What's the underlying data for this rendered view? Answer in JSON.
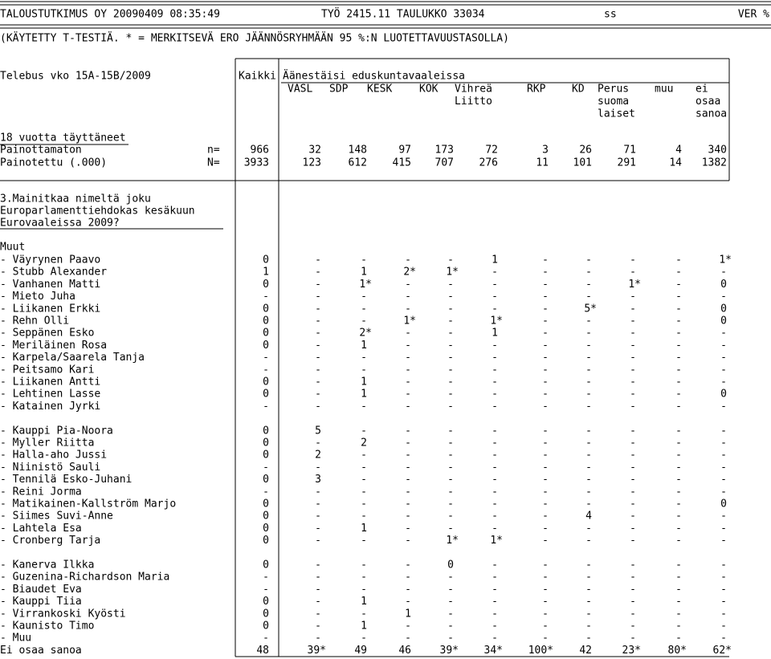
{
  "header": {
    "line1": [
      "TALOUSTUTKIMUS OY 20090409 08:35:49",
      "TYÖ 2415.11 TAULUKKO 33034",
      "ss",
      "VER %"
    ],
    "note": "(KÄYTETTY T-TESTIÄ. * = MERKITSEVÄ ERO JÄÄNNÖSRYHMÄÄN 95 %:N LUOTETTAVUUSTASOLLA)"
  },
  "table": {
    "stub_title": "Telebus vko 15A-15B/2009",
    "total_label": "Kaikki",
    "group_label": "Äänestäisi eduskuntavaaleissa",
    "columns": [
      [
        "VASL"
      ],
      [
        "SDP"
      ],
      [
        "KESK"
      ],
      [
        "KOK"
      ],
      [
        "Vihreä",
        "Liitto"
      ],
      [
        "RKP"
      ],
      [
        "KD"
      ],
      [
        "Perus",
        "suoma",
        "laiset"
      ],
      [
        "muu"
      ],
      [
        "ei",
        "osaa",
        "sanoa"
      ]
    ],
    "base_title": "18 vuotta täyttäneet",
    "bases": [
      {
        "label": "Painottamaton",
        "mark": "n=",
        "cells": [
          "966",
          "32",
          "148",
          "97",
          "173",
          "72",
          "3",
          "26",
          "71",
          "4",
          "340"
        ]
      },
      {
        "label": "Painotettu (.000)",
        "mark": "N=",
        "cells": [
          "3933",
          "123",
          "612",
          "415",
          "707",
          "276",
          "11",
          "101",
          "291",
          "14",
          "1382"
        ]
      }
    ],
    "question": [
      "3.Mainitkaa nimeltä joku",
      "Europarlamenttiehdokas kesäkuun",
      "Eurovaaleissa 2009?"
    ],
    "section": "Muut",
    "groups": [
      [
        {
          "label": "- Väyrynen Paavo",
          "cells": [
            "0",
            "-",
            "-",
            "-",
            "-",
            "1",
            "-",
            "-",
            "-",
            "-",
            "1*"
          ]
        },
        {
          "label": "- Stubb Alexander",
          "cells": [
            "1",
            "-",
            "1",
            "2*",
            "1*",
            "-",
            "-",
            "-",
            "-",
            "-",
            "-"
          ]
        },
        {
          "label": "- Vanhanen Matti",
          "cells": [
            "0",
            "-",
            "1*",
            "-",
            "-",
            "-",
            "-",
            "-",
            "1*",
            "-",
            "0"
          ]
        },
        {
          "label": "- Mieto Juha",
          "cells": [
            "-",
            "-",
            "-",
            "-",
            "-",
            "-",
            "-",
            "-",
            "-",
            "-",
            "-"
          ]
        },
        {
          "label": "- Liikanen Erkki",
          "cells": [
            "0",
            "-",
            "-",
            "-",
            "-",
            "-",
            "-",
            "5*",
            "-",
            "-",
            "0"
          ]
        },
        {
          "label": "- Rehn Olli",
          "cells": [
            "0",
            "-",
            "-",
            "1*",
            "-",
            "1*",
            "-",
            "-",
            "-",
            "-",
            "0"
          ]
        },
        {
          "label": "- Seppänen Esko",
          "cells": [
            "0",
            "-",
            "2*",
            "-",
            "-",
            "1",
            "-",
            "-",
            "-",
            "-",
            "-"
          ]
        },
        {
          "label": "- Meriläinen Rosa",
          "cells": [
            "0",
            "-",
            "1",
            "-",
            "-",
            "-",
            "-",
            "-",
            "-",
            "-",
            "-"
          ]
        },
        {
          "label": "- Karpela/Saarela Tanja",
          "cells": [
            "-",
            "-",
            "-",
            "-",
            "-",
            "-",
            "-",
            "-",
            "-",
            "-",
            "-"
          ]
        },
        {
          "label": "- Peitsamo Kari",
          "cells": [
            "-",
            "-",
            "-",
            "-",
            "-",
            "-",
            "-",
            "-",
            "-",
            "-",
            "-"
          ]
        },
        {
          "label": "- Liikanen Antti",
          "cells": [
            "0",
            "-",
            "1",
            "-",
            "-",
            "-",
            "-",
            "-",
            "-",
            "-",
            "-"
          ]
        },
        {
          "label": "- Lehtinen Lasse",
          "cells": [
            "0",
            "-",
            "1",
            "-",
            "-",
            "-",
            "-",
            "-",
            "-",
            "-",
            "0"
          ]
        },
        {
          "label": "- Katainen Jyrki",
          "cells": [
            "-",
            "-",
            "-",
            "-",
            "-",
            "-",
            "-",
            "-",
            "-",
            "-",
            "-"
          ]
        }
      ],
      [
        {
          "label": "- Kauppi Pia-Noora",
          "cells": [
            "0",
            "5",
            "-",
            "-",
            "-",
            "-",
            "-",
            "-",
            "-",
            "-",
            "-"
          ]
        },
        {
          "label": "- Myller Riitta",
          "cells": [
            "0",
            "-",
            "2",
            "-",
            "-",
            "-",
            "-",
            "-",
            "-",
            "-",
            "-"
          ]
        },
        {
          "label": "- Halla-aho Jussi",
          "cells": [
            "0",
            "2",
            "-",
            "-",
            "-",
            "-",
            "-",
            "-",
            "-",
            "-",
            "-"
          ]
        },
        {
          "label": "- Niinistö Sauli",
          "cells": [
            "-",
            "-",
            "-",
            "-",
            "-",
            "-",
            "-",
            "-",
            "-",
            "-",
            "-"
          ]
        },
        {
          "label": "- Tennilä Esko-Juhani",
          "cells": [
            "0",
            "3",
            "-",
            "-",
            "-",
            "-",
            "-",
            "-",
            "-",
            "-",
            "-"
          ]
        },
        {
          "label": "- Reini Jorma",
          "cells": [
            "-",
            "-",
            "-",
            "-",
            "-",
            "-",
            "-",
            "-",
            "-",
            "-",
            "-"
          ]
        },
        {
          "label": "- Matikainen-Kallström Marjo",
          "cells": [
            "0",
            "-",
            "-",
            "-",
            "-",
            "-",
            "-",
            "-",
            "-",
            "-",
            "0"
          ]
        },
        {
          "label": "- Siimes Suvi-Anne",
          "cells": [
            "0",
            "-",
            "-",
            "-",
            "-",
            "-",
            "-",
            "4",
            "-",
            "-",
            "-"
          ]
        },
        {
          "label": "- Lahtela Esa",
          "cells": [
            "0",
            "-",
            "1",
            "-",
            "-",
            "-",
            "-",
            "-",
            "-",
            "-",
            "-"
          ]
        },
        {
          "label": "- Cronberg Tarja",
          "cells": [
            "0",
            "-",
            "-",
            "-",
            "1*",
            "1*",
            "-",
            "-",
            "-",
            "-",
            "-"
          ]
        }
      ],
      [
        {
          "label": "- Kanerva Ilkka",
          "cells": [
            "0",
            "-",
            "-",
            "-",
            "0",
            "-",
            "-",
            "-",
            "-",
            "-",
            "-"
          ]
        },
        {
          "label": "- Guzenina-Richardson Maria",
          "cells": [
            "-",
            "-",
            "-",
            "-",
            "-",
            "-",
            "-",
            "-",
            "-",
            "-",
            "-"
          ]
        },
        {
          "label": "- Biaudet Eva",
          "cells": [
            "-",
            "-",
            "-",
            "-",
            "-",
            "-",
            "-",
            "-",
            "-",
            "-",
            "-"
          ]
        },
        {
          "label": "- Kauppi Tiia",
          "cells": [
            "0",
            "-",
            "1",
            "-",
            "-",
            "-",
            "-",
            "-",
            "-",
            "-",
            "-"
          ]
        },
        {
          "label": "- Virrankoski Kyösti",
          "cells": [
            "0",
            "-",
            "-",
            "1",
            "-",
            "-",
            "-",
            "-",
            "-",
            "-",
            "-"
          ]
        },
        {
          "label": "- Kaunisto Timo",
          "cells": [
            "0",
            "-",
            "1",
            "-",
            "-",
            "-",
            "-",
            "-",
            "-",
            "-",
            "-"
          ]
        },
        {
          "label": "- Muu",
          "cells": [
            "-",
            "-",
            "-",
            "-",
            "-",
            "-",
            "-",
            "-",
            "-",
            "-",
            "-"
          ]
        },
        {
          "label": "Ei osaa sanoa",
          "cells": [
            "48",
            "39*",
            "49",
            "46",
            "39*",
            "34*",
            "100*",
            "42",
            "23*",
            "80*",
            "62*"
          ]
        }
      ]
    ]
  }
}
